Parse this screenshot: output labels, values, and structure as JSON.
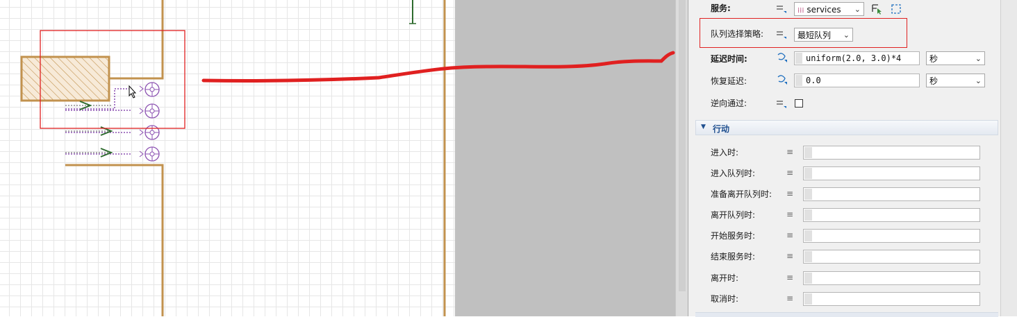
{
  "properties": {
    "service": {
      "label": "服务:",
      "value": "services"
    },
    "queue_policy": {
      "label": "队列选择策略:",
      "value": "最短队列"
    },
    "delay_time": {
      "label": "延迟时间:",
      "value": "uniform(2.0, 3.0)*4",
      "unit": "秒"
    },
    "recovery_delay": {
      "label": "恢复延迟:",
      "value": "0.0",
      "unit": "秒"
    },
    "reverse_pass": {
      "label": "逆向通过:",
      "checked": false
    }
  },
  "actions_section": {
    "title": "行动",
    "items": [
      {
        "label": "进入时:"
      },
      {
        "label": "进入队列时:"
      },
      {
        "label": "准备离开队列时:"
      },
      {
        "label": "离开队列时:"
      },
      {
        "label": "开始服务时:"
      },
      {
        "label": "结束服务时:"
      },
      {
        "label": "离开时:"
      },
      {
        "label": "取消时:"
      }
    ]
  },
  "colors": {
    "wall": "#c2924e",
    "annotation_red": "#e02020",
    "queue_line": "#8a4fb0",
    "arrow_green": "#2e6b2e",
    "service_purple": "#8a4fb0"
  }
}
